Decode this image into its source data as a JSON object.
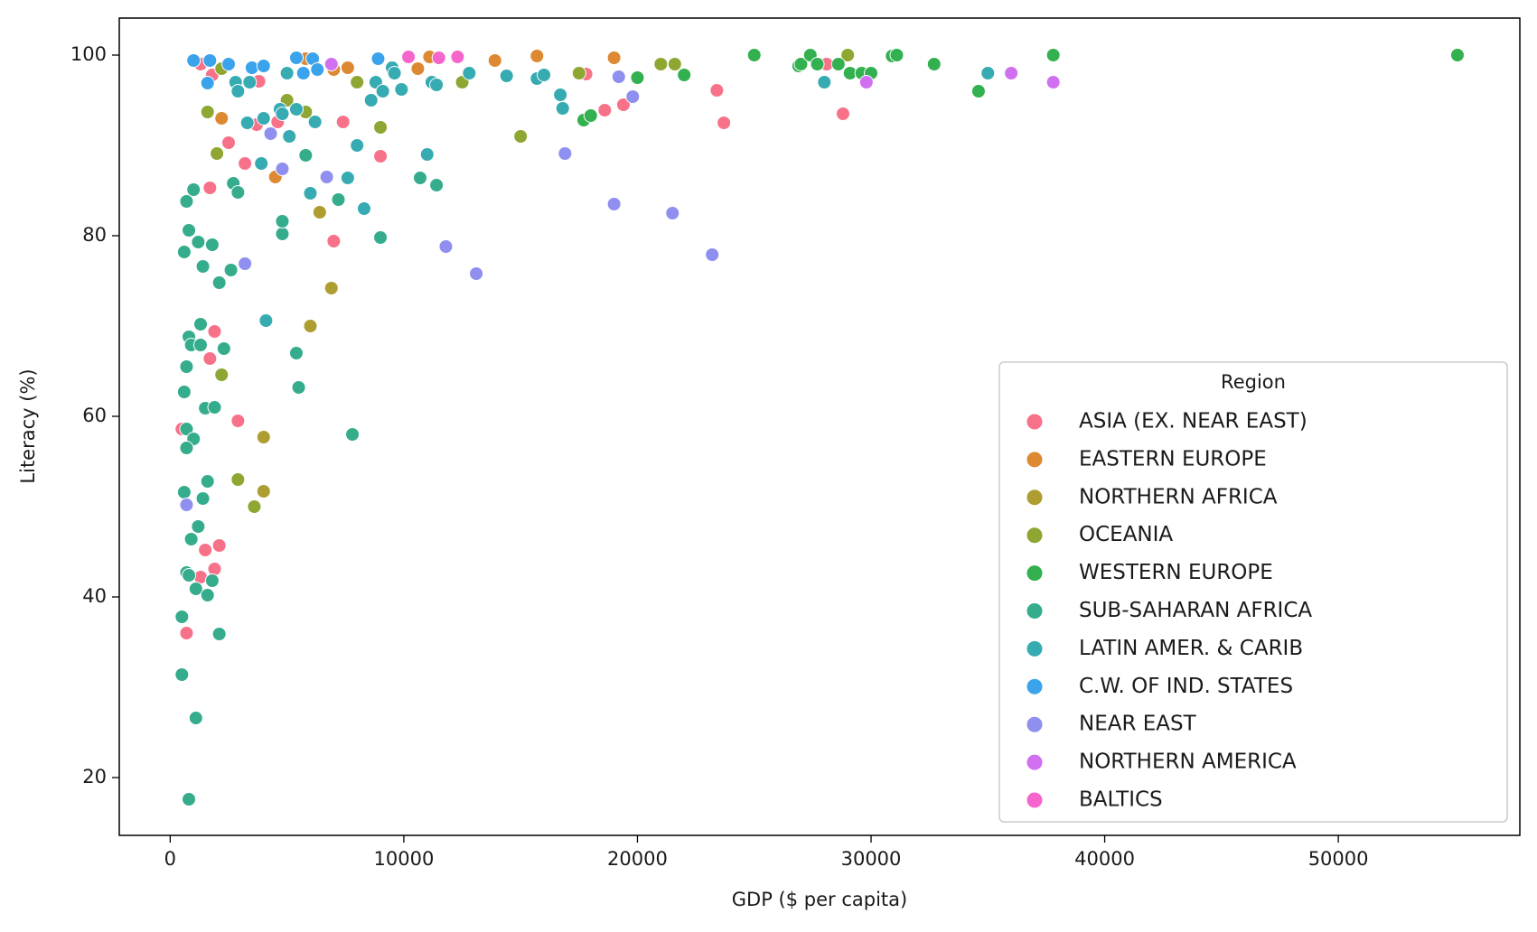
{
  "chart_data": {
    "type": "scatter",
    "xlabel": "GDP ($ per capita)",
    "ylabel": "Literacy (%)",
    "xlim": [
      -2180,
      57770
    ],
    "ylim": [
      13.6,
      104.1
    ],
    "xticks": [
      0,
      10000,
      20000,
      30000,
      40000,
      50000
    ],
    "yticks": [
      20,
      40,
      60,
      80,
      100
    ],
    "grid": false,
    "legend_title": "Region",
    "legend_position": "lower-right",
    "series": [
      {
        "name": "ASIA (EX. NEAR EAST)",
        "color": "#f77189",
        "x": [
          1300,
          1800,
          3800,
          1700,
          2500,
          3200,
          3700,
          4600,
          7000,
          7400,
          9000,
          1900,
          1700,
          500,
          2900,
          2100,
          1500,
          1900,
          1300,
          700,
          17800,
          18600,
          19400,
          23400,
          23700,
          28800,
          28100
        ],
        "values": [
          99,
          97.8,
          97.1,
          85.3,
          90.3,
          88,
          92.3,
          92.6,
          79.4,
          92.6,
          88.8,
          69.4,
          66.4,
          58.6,
          59.5,
          45.7,
          45.2,
          43.1,
          42.2,
          36,
          97.9,
          93.9,
          94.5,
          96.1,
          92.5,
          93.5,
          99
        ]
      },
      {
        "name": "EASTERN EUROPE",
        "color": "#dc8932",
        "x": [
          2200,
          4500,
          7000,
          7600,
          10600,
          11100,
          13900,
          15700,
          19000,
          5800
        ],
        "values": [
          93,
          86.5,
          98.4,
          98.6,
          98.5,
          99.8,
          99.4,
          99.9,
          99.7,
          99.6
        ]
      },
      {
        "name": "NORTHERN AFRICA",
        "color": "#ae9d31",
        "x": [
          4000,
          4000,
          6000,
          6900,
          6400
        ],
        "values": [
          57.7,
          51.7,
          70,
          74.2,
          82.6
        ]
      },
      {
        "name": "OCEANIA",
        "color": "#8ea632",
        "x": [
          2200,
          1600,
          2000,
          2200,
          2900,
          3600,
          5000,
          5800,
          8000,
          9000,
          12500,
          15000,
          17500,
          21000,
          21600,
          29000
        ],
        "values": [
          98.5,
          93.7,
          89.1,
          64.6,
          53,
          50,
          95,
          93.7,
          97,
          92,
          97,
          91,
          98,
          99,
          99,
          100
        ]
      },
      {
        "name": "WESTERN EUROPE",
        "color": "#33b04f",
        "x": [
          17700,
          18000,
          20000,
          22000,
          25000,
          26900,
          27000,
          27400,
          27700,
          28600,
          29100,
          29600,
          30000,
          30900,
          31100,
          32700,
          34600,
          37800,
          55100
        ],
        "values": [
          92.8,
          93.3,
          97.5,
          97.8,
          100,
          98.8,
          99,
          100,
          99,
          99,
          98,
          98,
          98,
          99.9,
          100,
          99,
          96,
          100,
          100
        ]
      },
      {
        "name": "SUB-SAHARAN AFRICA",
        "color": "#35ac8c",
        "x": [
          700,
          800,
          1000,
          600,
          1200,
          1400,
          1800,
          2100,
          2600,
          1300,
          800,
          900,
          1300,
          2300,
          700,
          600,
          1500,
          1900,
          700,
          1000,
          700,
          600,
          1600,
          1400,
          1200,
          900,
          700,
          800,
          1100,
          1600,
          1800,
          500,
          2100,
          500,
          1100,
          800,
          2700,
          2900,
          4800,
          4800,
          5800,
          5500,
          5400,
          7200,
          7800,
          9000,
          10700,
          11400
        ],
        "values": [
          83.8,
          80.6,
          85.1,
          78.2,
          79.3,
          76.6,
          79,
          74.8,
          76.2,
          70.2,
          68.8,
          67.9,
          67.9,
          67.5,
          65.5,
          62.7,
          60.9,
          61,
          58.6,
          57.5,
          56.5,
          51.6,
          52.8,
          50.9,
          47.8,
          46.4,
          42.7,
          42.4,
          40.9,
          40.2,
          41.8,
          37.8,
          35.9,
          31.4,
          26.6,
          17.6,
          85.8,
          84.8,
          80.2,
          81.6,
          88.9,
          63.2,
          67,
          84,
          58,
          79.8,
          86.4,
          85.6
        ]
      },
      {
        "name": "LATIN AMER. & CARIB",
        "color": "#37abb2",
        "x": [
          2800,
          2900,
          3400,
          3300,
          4000,
          4700,
          4800,
          5000,
          5400,
          6200,
          7600,
          8000,
          8300,
          8600,
          8800,
          9100,
          9500,
          9600,
          9900,
          11200,
          11400,
          11000,
          12800,
          14400,
          15700,
          16000,
          16700,
          16800,
          28000,
          35000,
          4100,
          6000,
          3900,
          5100
        ],
        "values": [
          97,
          96,
          97,
          92.5,
          93,
          94,
          93.5,
          98,
          94,
          92.6,
          86.4,
          90,
          83,
          95,
          97,
          96,
          98.6,
          98,
          96.2,
          97,
          96.7,
          89,
          98,
          97.7,
          97.4,
          97.8,
          95.6,
          94.1,
          97,
          98,
          70.6,
          84.7,
          88,
          91
        ]
      },
      {
        "name": "C.W. OF IND. STATES",
        "color": "#3ba3ec",
        "x": [
          1000,
          1600,
          1700,
          2500,
          3500,
          4000,
          5400,
          5700,
          6100,
          6300,
          8900
        ],
        "values": [
          99.4,
          96.9,
          99.4,
          99,
          98.6,
          98.8,
          99.7,
          98,
          99.6,
          98.4,
          99.6
        ]
      },
      {
        "name": "NEAR EAST",
        "color": "#8e8fef",
        "x": [
          700,
          3200,
          4300,
          4800,
          6700,
          11800,
          13100,
          16900,
          19000,
          19200,
          19800,
          21500,
          23200
        ],
        "values": [
          50.2,
          76.9,
          91.3,
          87.4,
          86.5,
          78.8,
          75.8,
          89.1,
          83.5,
          97.6,
          95.4,
          82.5,
          77.9
        ]
      },
      {
        "name": "NORTHERN AMERICA",
        "color": "#d070f0",
        "x": [
          6900,
          29800,
          36000,
          37800
        ],
        "values": [
          99,
          97,
          98,
          97
        ]
      },
      {
        "name": "BALTICS",
        "color": "#f565cc",
        "x": [
          10200,
          11500,
          12300
        ],
        "values": [
          99.8,
          99.7,
          99.8
        ]
      }
    ]
  }
}
